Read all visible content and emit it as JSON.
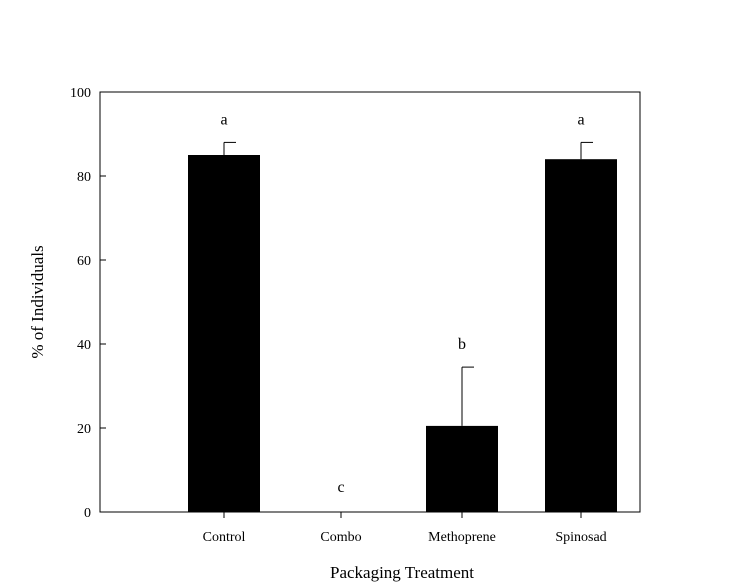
{
  "chart_data": {
    "type": "bar",
    "categories": [
      "Control",
      "Combo",
      "Methoprene",
      "Spinosad"
    ],
    "series": [
      {
        "values": [
          85,
          0,
          20.5,
          84
        ],
        "error_upper": [
          88,
          0,
          34.5,
          88
        ],
        "significance": [
          "a",
          "c",
          "b",
          "a"
        ]
      }
    ],
    "xlabel": "Packaging Treatment",
    "ylabel": "% of Individuals",
    "ylim": [
      0,
      100
    ],
    "yticks": [
      0,
      20,
      40,
      60,
      80,
      100
    ],
    "grid": false,
    "bar_color": "#000000"
  }
}
